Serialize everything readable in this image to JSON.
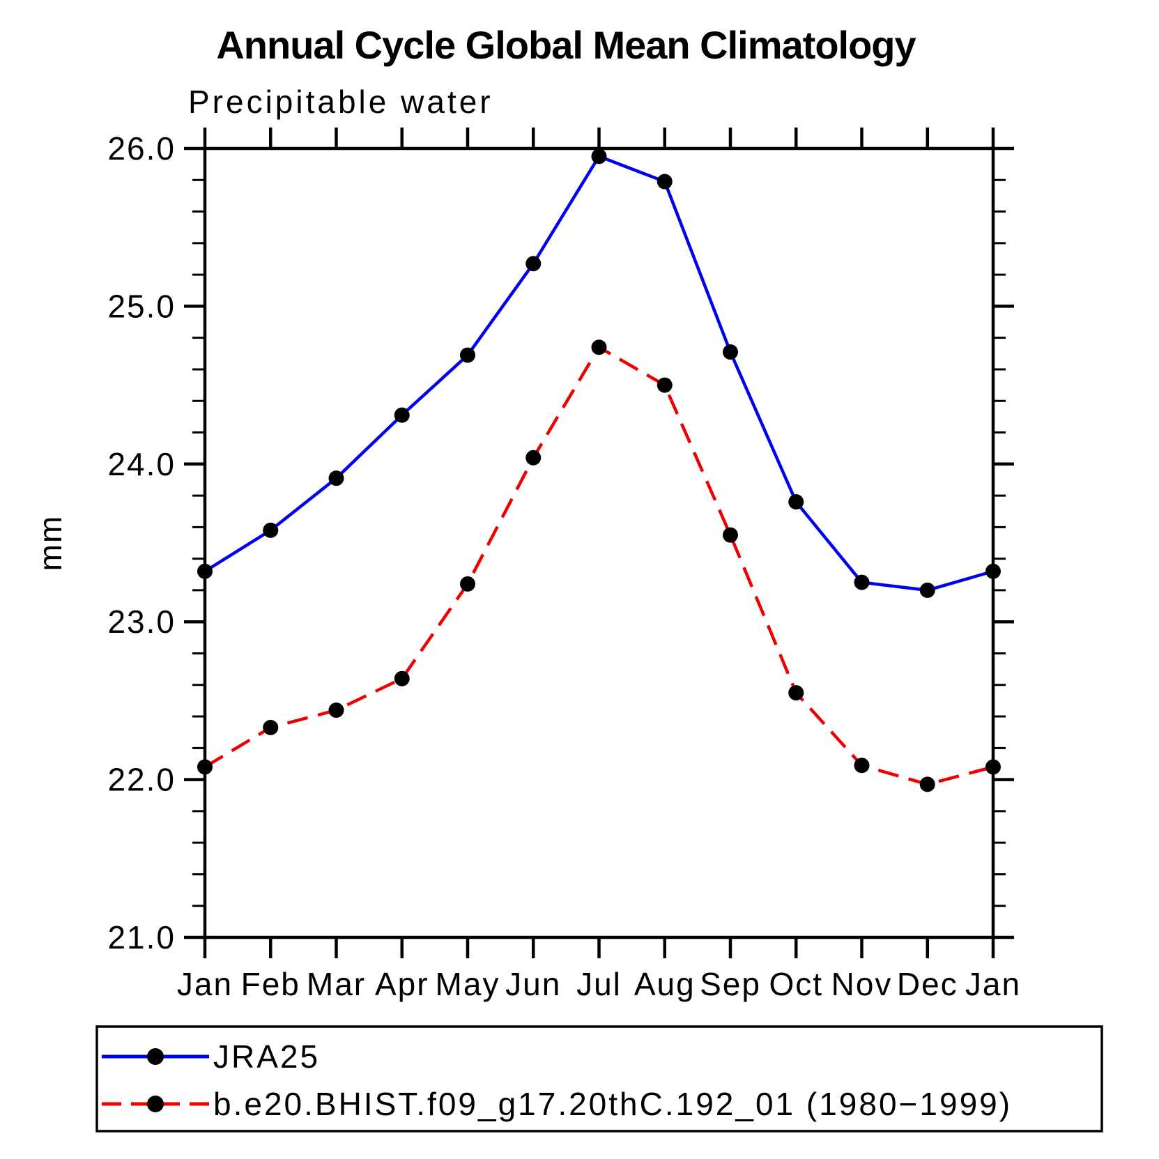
{
  "chart_data": {
    "type": "line",
    "title": "Annual Cycle Global Mean Climatology",
    "subtitle": "Precipitable water",
    "ylabel": "mm",
    "xlabel": "",
    "x_categories": [
      "Jan",
      "Feb",
      "Mar",
      "Apr",
      "May",
      "Jun",
      "Jul",
      "Aug",
      "Sep",
      "Oct",
      "Nov",
      "Dec",
      "Jan"
    ],
    "ylim": [
      21.0,
      26.0
    ],
    "y_major_ticks": [
      26.0,
      25.0,
      24.0,
      23.0,
      22.0,
      21.0
    ],
    "y_tick_labels": [
      "26.0",
      "25.0",
      "24.0",
      "23.0",
      "22.0",
      "21.0"
    ],
    "y_minor_step": 0.2,
    "grid": false,
    "legend_position": "bottom",
    "background_color": "#ffffff",
    "axis_color": "#000000",
    "marker_color": "#000000",
    "series": [
      {
        "name": "JRA25",
        "color": "#0000ee",
        "line_style": "solid",
        "marker": "filled-circle",
        "values": [
          23.32,
          23.58,
          23.91,
          24.31,
          24.69,
          25.27,
          25.95,
          25.79,
          24.71,
          23.76,
          23.25,
          23.2,
          23.32
        ]
      },
      {
        "name": "b.e20.BHIST.f09_g17.20thC.192_01 (1980−1999)",
        "color": "#ee0000",
        "line_style": "dashed",
        "marker": "filled-circle",
        "values": [
          22.08,
          22.33,
          22.44,
          22.64,
          23.24,
          24.04,
          24.74,
          24.5,
          23.55,
          22.55,
          22.09,
          21.97,
          22.08
        ]
      }
    ]
  }
}
